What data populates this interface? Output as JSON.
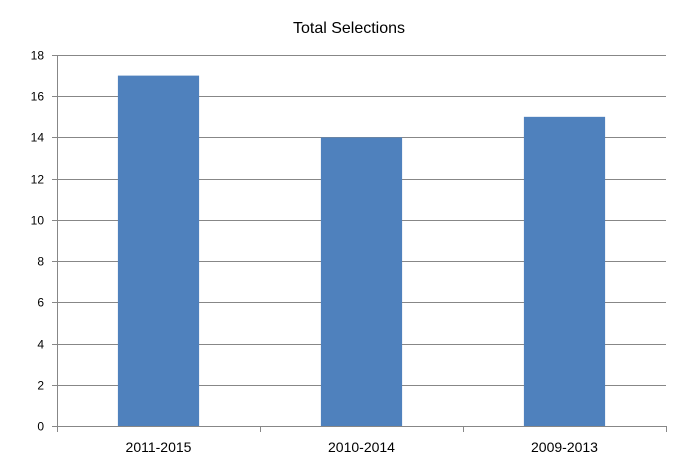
{
  "chart_data": {
    "type": "bar",
    "title": "Total Selections",
    "categories": [
      "2011-2015",
      "2010-2014",
      "2009-2013"
    ],
    "values": [
      17,
      14,
      15
    ],
    "xlabel": "",
    "ylabel": "",
    "ylim": [
      0,
      18
    ],
    "yticks": [
      "0",
      "2",
      "4",
      "6",
      "8",
      "10",
      "12",
      "14",
      "16",
      "18"
    ],
    "grid": true,
    "legend": "none",
    "colors": {
      "bar": "#4F81BD",
      "grid": "#878787",
      "axis": "#878787"
    }
  }
}
